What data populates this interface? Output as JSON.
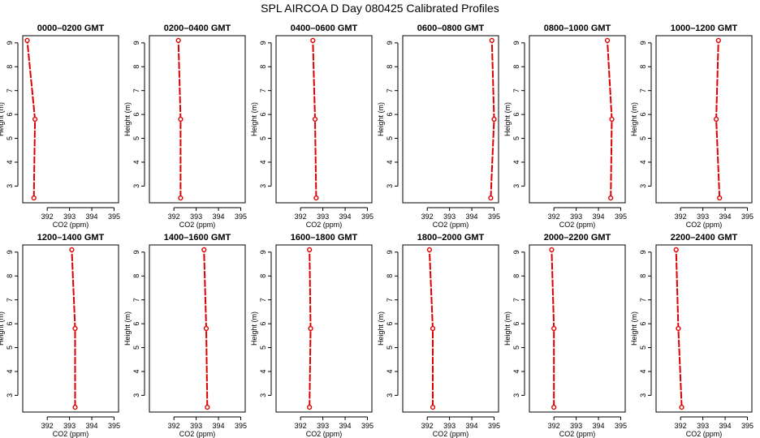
{
  "title": "SPL AIRCOA D  Day 080425  Calibrated Profiles",
  "chart_data": {
    "type": "line",
    "x_axis": {
      "label": "CO2 (ppm)",
      "ticks": [
        392,
        393,
        394,
        395
      ],
      "range": [
        390.9,
        395.2
      ]
    },
    "y_axis": {
      "label": "Height (m)",
      "ticks": [
        3,
        4,
        5,
        6,
        7,
        8,
        9
      ],
      "range": [
        2.3,
        9.3
      ]
    },
    "grid": false,
    "line_color": "#dd0000",
    "panels": [
      {
        "title": "0000–0200 GMT",
        "points": [
          {
            "height": 9.1,
            "co2": 391.1
          },
          {
            "height": 5.8,
            "co2": 391.45
          },
          {
            "height": 2.5,
            "co2": 391.4
          }
        ]
      },
      {
        "title": "0200–0400 GMT",
        "points": [
          {
            "height": 9.1,
            "co2": 392.2
          },
          {
            "height": 5.8,
            "co2": 392.3
          },
          {
            "height": 2.5,
            "co2": 392.3
          }
        ]
      },
      {
        "title": "0400–0600 GMT",
        "points": [
          {
            "height": 9.1,
            "co2": 392.55
          },
          {
            "height": 5.8,
            "co2": 392.65
          },
          {
            "height": 2.5,
            "co2": 392.7
          }
        ]
      },
      {
        "title": "0600–0800 GMT",
        "points": [
          {
            "height": 9.1,
            "co2": 394.9
          },
          {
            "height": 5.8,
            "co2": 395.0
          },
          {
            "height": 2.5,
            "co2": 394.85
          }
        ]
      },
      {
        "title": "0800–1000 GMT",
        "points": [
          {
            "height": 9.1,
            "co2": 394.4
          },
          {
            "height": 5.8,
            "co2": 394.6
          },
          {
            "height": 2.5,
            "co2": 394.55
          }
        ]
      },
      {
        "title": "1000–1200 GMT",
        "points": [
          {
            "height": 9.1,
            "co2": 393.7
          },
          {
            "height": 5.8,
            "co2": 393.6
          },
          {
            "height": 2.5,
            "co2": 393.75
          }
        ]
      },
      {
        "title": "1200–1400 GMT",
        "points": [
          {
            "height": 9.1,
            "co2": 393.1
          },
          {
            "height": 5.8,
            "co2": 393.25
          },
          {
            "height": 2.5,
            "co2": 393.25
          }
        ]
      },
      {
        "title": "1400–1600 GMT",
        "points": [
          {
            "height": 9.1,
            "co2": 393.35
          },
          {
            "height": 5.8,
            "co2": 393.45
          },
          {
            "height": 2.5,
            "co2": 393.5
          }
        ]
      },
      {
        "title": "1600–1800 GMT",
        "points": [
          {
            "height": 9.1,
            "co2": 392.4
          },
          {
            "height": 5.8,
            "co2": 392.45
          },
          {
            "height": 2.5,
            "co2": 392.4
          }
        ]
      },
      {
        "title": "1800–2000 GMT",
        "points": [
          {
            "height": 9.1,
            "co2": 392.1
          },
          {
            "height": 5.8,
            "co2": 392.25
          },
          {
            "height": 2.5,
            "co2": 392.25
          }
        ]
      },
      {
        "title": "2000–2200 GMT",
        "points": [
          {
            "height": 9.1,
            "co2": 391.9
          },
          {
            "height": 5.8,
            "co2": 392.0
          },
          {
            "height": 2.5,
            "co2": 392.0
          }
        ]
      },
      {
        "title": "2200–2400 GMT",
        "points": [
          {
            "height": 9.1,
            "co2": 391.8
          },
          {
            "height": 5.8,
            "co2": 391.9
          },
          {
            "height": 2.5,
            "co2": 392.05
          }
        ]
      }
    ]
  }
}
